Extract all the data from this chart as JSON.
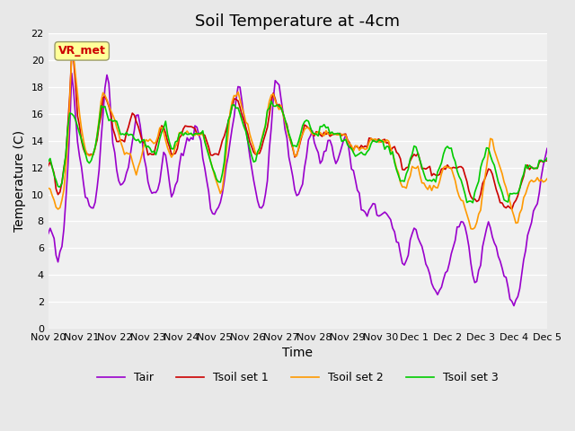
{
  "title": "Soil Temperature at -4cm",
  "xlabel": "Time",
  "ylabel": "Temperature (C)",
  "ylim": [
    0,
    22
  ],
  "yticks": [
    0,
    2,
    4,
    6,
    8,
    10,
    12,
    14,
    16,
    18,
    20,
    22
  ],
  "xtick_labels": [
    "Nov 20",
    "Nov 21",
    "Nov 22",
    "Nov 23",
    "Nov 24",
    "Nov 25",
    "Nov 26",
    "Nov 27",
    "Nov 28",
    "Nov 29",
    "Nov 30",
    "Dec 1",
    "Dec 2",
    "Dec 3",
    "Dec 4",
    "Dec 5"
  ],
  "colors": {
    "Tair": "#9900cc",
    "Tsoil1": "#cc0000",
    "Tsoil2": "#ff9900",
    "Tsoil3": "#00cc00"
  },
  "legend_labels": [
    "Tair",
    "Tsoil set 1",
    "Tsoil set 2",
    "Tsoil set 3"
  ],
  "annotation_text": "VR_met",
  "annotation_color": "#cc0000",
  "annotation_bg": "#ffff99",
  "bg_color": "#e8e8e8",
  "plot_bg": "#f0f0f0",
  "linewidth": 1.2,
  "title_fontsize": 13,
  "axis_fontsize": 10,
  "tick_fontsize": 8
}
